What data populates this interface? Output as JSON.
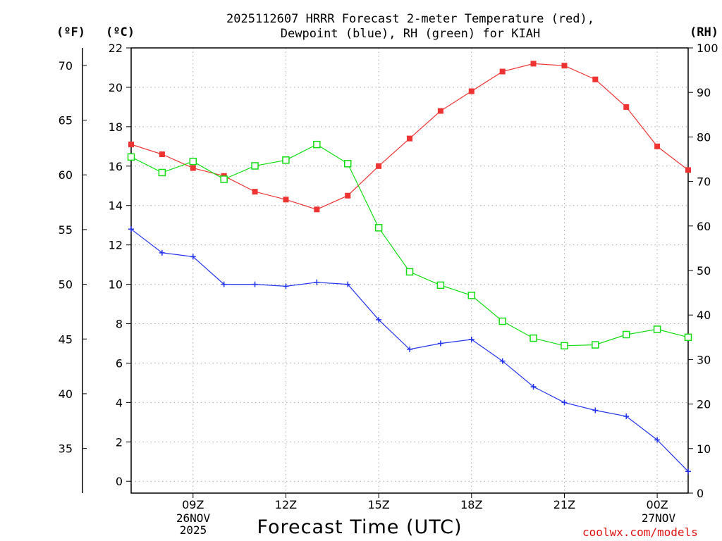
{
  "title": {
    "line1": "2025112607 HRRR Forecast 2-meter Temperature (red),",
    "line2": "Dewpoint (blue), RH (green) for KIAH"
  },
  "units": {
    "fahrenheit": "(ºF)",
    "celsius": "(ºC)",
    "rh": "(RH)"
  },
  "xlabel": "Forecast Time (UTC)",
  "watermark": "coolwx.com/models",
  "date_labels": [
    {
      "lines": [
        "26NOV",
        "2025"
      ],
      "hour": 9
    },
    {
      "lines": [
        "27NOV"
      ],
      "hour": 24
    }
  ],
  "colors": {
    "temperature": "#ee3333",
    "dewpoint": "#2233ee",
    "rh": "#11dd11",
    "grid": "#aaaaaa"
  },
  "chart_data": {
    "type": "line",
    "x_unit": "forecast hour (UTC, 26NOV2025)",
    "x": [
      7,
      8,
      9,
      10,
      11,
      12,
      13,
      14,
      15,
      16,
      17,
      18,
      19,
      20,
      21,
      22,
      23,
      24,
      25
    ],
    "xlim": [
      7,
      25
    ],
    "x_ticks": [
      {
        "hour": 9,
        "label": "09Z"
      },
      {
        "hour": 12,
        "label": "12Z"
      },
      {
        "hour": 15,
        "label": "15Z"
      },
      {
        "hour": 18,
        "label": "18Z"
      },
      {
        "hour": 21,
        "label": "21Z"
      },
      {
        "hour": 24,
        "label": "00Z"
      }
    ],
    "y_left": {
      "unit": "ºC",
      "lim": [
        -0.6,
        22
      ],
      "ticks": [
        0,
        2,
        4,
        6,
        8,
        10,
        12,
        14,
        16,
        18,
        20,
        22
      ]
    },
    "y_far_left": {
      "unit": "ºF",
      "ticks": [
        35,
        40,
        45,
        50,
        55,
        60,
        65,
        70
      ]
    },
    "y_right": {
      "unit": "RH",
      "lim": [
        0,
        100
      ],
      "ticks": [
        0,
        10,
        20,
        30,
        40,
        50,
        60,
        70,
        80,
        90,
        100
      ]
    },
    "series": [
      {
        "name": "2-meter Temperature",
        "axis": "celsius",
        "marker": "filled-square",
        "values": [
          17.1,
          16.6,
          15.9,
          15.5,
          14.7,
          14.3,
          13.8,
          14.5,
          16.0,
          17.4,
          18.8,
          19.8,
          20.8,
          21.2,
          21.1,
          20.4,
          19.0,
          17.0,
          15.8
        ]
      },
      {
        "name": "Dewpoint",
        "axis": "celsius",
        "marker": "plus",
        "values": [
          12.8,
          11.6,
          11.4,
          10.0,
          10.0,
          9.9,
          10.1,
          10.0,
          8.2,
          6.7,
          7.0,
          7.2,
          6.1,
          4.8,
          4.0,
          3.6,
          3.3,
          2.1,
          0.5
        ]
      },
      {
        "name": "Relative Humidity",
        "axis": "rh",
        "marker": "open-square",
        "values": [
          75.5,
          72.0,
          74.5,
          70.5,
          73.5,
          74.8,
          78.3,
          74.0,
          59.6,
          49.7,
          46.7,
          44.4,
          38.6,
          34.8,
          33.1,
          33.3,
          35.6,
          36.8,
          35.0
        ]
      }
    ]
  }
}
